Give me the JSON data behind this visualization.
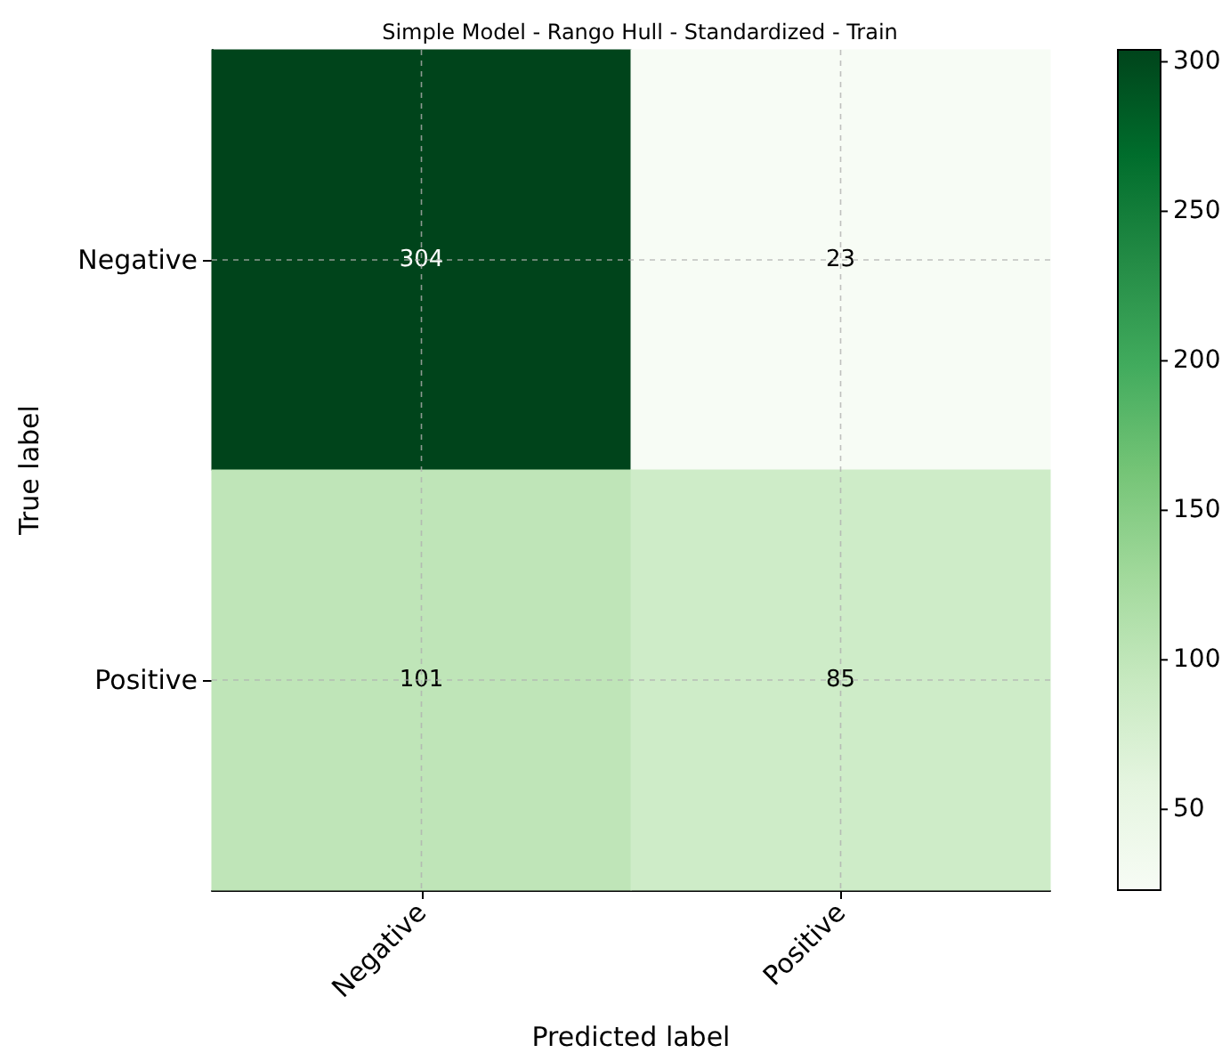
{
  "chart_data": {
    "type": "heatmap",
    "title": "Simple Model - Rango Hull - Standardized - Train",
    "xlabel": "Predicted label",
    "ylabel": "True label",
    "categories": [
      "Negative",
      "Positive"
    ],
    "y_categories": [
      "Negative",
      "Positive"
    ],
    "cells": [
      [
        304,
        23
      ],
      [
        101,
        85
      ]
    ],
    "data_labels": true,
    "grid": true,
    "clim": [
      23,
      304
    ],
    "cticks": [
      50,
      100,
      150,
      200,
      250,
      300
    ]
  }
}
